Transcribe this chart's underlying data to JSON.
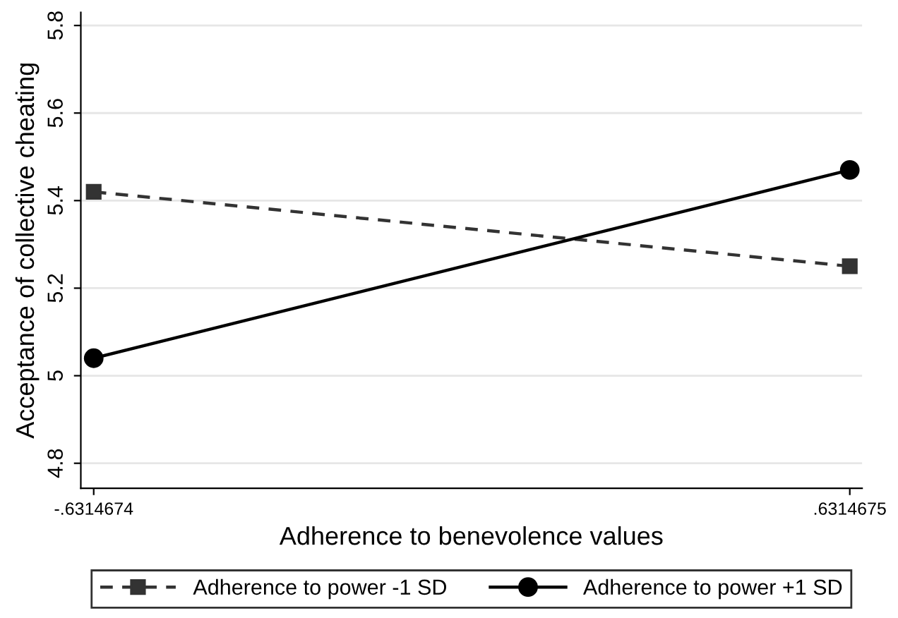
{
  "chart_data": {
    "type": "line",
    "xlabel": "Adherence to benevolence values",
    "ylabel": "Acceptance of collective cheating",
    "x": [
      -0.6314674,
      0.6314675
    ],
    "series": [
      {
        "name": "Adherence to power -1 SD",
        "color": "#333333",
        "values": [
          5.42,
          5.25
        ],
        "marker": "square",
        "line_style": "dashed"
      },
      {
        "name": "Adherence to power +1 SD",
        "color": "#000000",
        "values": [
          5.04,
          5.47
        ],
        "marker": "circle",
        "line_style": "solid"
      }
    ],
    "xlim": [
      -0.653,
      0.652
    ],
    "xticks": [
      {
        "value": -0.6314674,
        "label": "-.6314674"
      },
      {
        "value": 0.6314675,
        "label": ".6314675"
      }
    ],
    "ylim": [
      4.743,
      5.83
    ],
    "yticks": [
      {
        "value": 4.8,
        "label": "4.8"
      },
      {
        "value": 5.0,
        "label": "5"
      },
      {
        "value": 5.2,
        "label": "5.2"
      },
      {
        "value": 5.4,
        "label": "5.4"
      },
      {
        "value": 5.6,
        "label": "5.6"
      },
      {
        "value": 5.8,
        "label": "5.8"
      }
    ],
    "grid": "y",
    "legend": "bottom"
  }
}
